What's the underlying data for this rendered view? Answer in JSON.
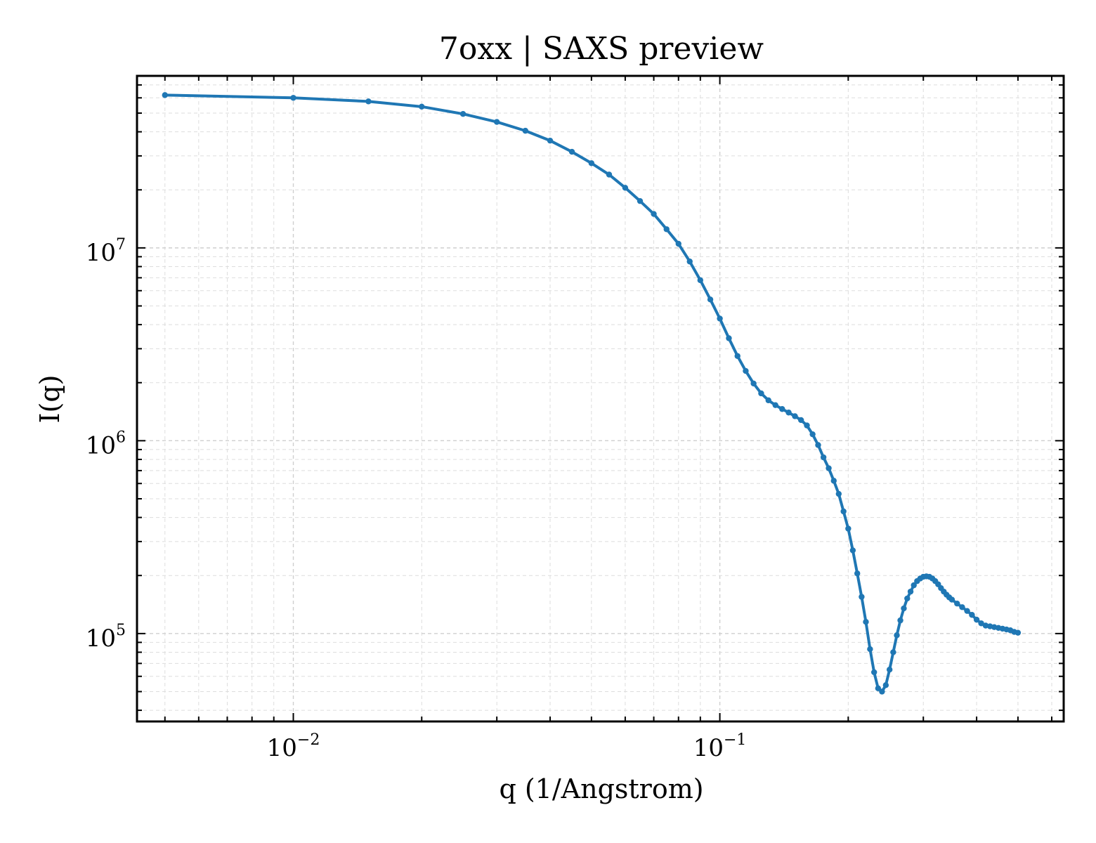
{
  "chart_data": {
    "type": "line",
    "title": "7oxx | SAXS preview",
    "xlabel": "q (1/Angstrom)",
    "ylabel": "I(q)",
    "xscale": "log",
    "yscale": "log",
    "xlim": [
      0.0043,
      0.64
    ],
    "ylim": [
      35000,
      78000000
    ],
    "grid": true,
    "legend": "none",
    "x_ticks": [
      {
        "base": "10",
        "exp": "−2",
        "value": 0.01
      },
      {
        "base": "10",
        "exp": "−1",
        "value": 0.1
      }
    ],
    "y_ticks": [
      {
        "base": "10",
        "exp": "5",
        "value": 100000
      },
      {
        "base": "10",
        "exp": "6",
        "value": 1000000
      },
      {
        "base": "10",
        "exp": "7",
        "value": 10000000
      }
    ],
    "series": [
      {
        "color": "#1f77b4",
        "marker": "circle",
        "x": [
          0.005,
          0.01,
          0.015,
          0.02,
          0.025,
          0.03,
          0.035,
          0.04,
          0.045,
          0.05,
          0.055,
          0.06,
          0.065,
          0.07,
          0.075,
          0.08,
          0.085,
          0.09,
          0.095,
          0.1,
          0.105,
          0.11,
          0.115,
          0.12,
          0.125,
          0.13,
          0.135,
          0.14,
          0.145,
          0.15,
          0.155,
          0.16,
          0.165,
          0.17,
          0.175,
          0.18,
          0.185,
          0.19,
          0.195,
          0.2,
          0.205,
          0.21,
          0.215,
          0.22,
          0.225,
          0.23,
          0.235,
          0.24,
          0.245,
          0.25,
          0.255,
          0.26,
          0.265,
          0.27,
          0.275,
          0.28,
          0.285,
          0.29,
          0.295,
          0.3,
          0.305,
          0.31,
          0.315,
          0.32,
          0.325,
          0.33,
          0.335,
          0.34,
          0.345,
          0.35,
          0.36,
          0.37,
          0.38,
          0.39,
          0.4,
          0.41,
          0.42,
          0.43,
          0.44,
          0.45,
          0.46,
          0.47,
          0.48,
          0.49,
          0.5
        ],
        "y": [
          62000000,
          60000000,
          57500000,
          54000000,
          49500000,
          45000000,
          40500000,
          36000000,
          31500000,
          27500000,
          24000000,
          20500000,
          17500000,
          15000000,
          12500000,
          10500000,
          8500000,
          6800000,
          5400000,
          4300000,
          3400000,
          2750000,
          2300000,
          1980000,
          1760000,
          1620000,
          1530000,
          1460000,
          1400000,
          1340000,
          1280000,
          1200000,
          1080000,
          950000,
          820000,
          720000,
          620000,
          530000,
          430000,
          350000,
          270000,
          205000,
          155000,
          115000,
          83000,
          63000,
          52000,
          50000,
          54000,
          65000,
          80000,
          98000,
          117000,
          135000,
          152000,
          165000,
          178000,
          187000,
          193000,
          197000,
          198000,
          197000,
          193000,
          187000,
          180000,
          172000,
          165000,
          159000,
          154000,
          150000,
          143000,
          137000,
          131000,
          125000,
          118000,
          113000,
          110000,
          109000,
          108000,
          107000,
          106000,
          105000,
          104000,
          102000,
          101000
        ]
      }
    ]
  }
}
